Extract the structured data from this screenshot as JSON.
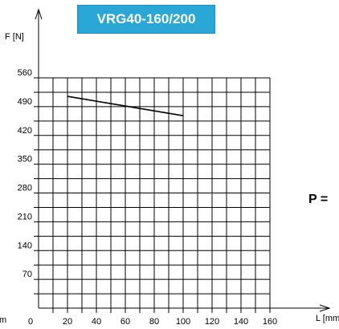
{
  "chart_data": {
    "type": "line",
    "title": "VRG40-160/200",
    "xlabel": "L [mm",
    "ylabel": "F [N]",
    "side_label": "P =",
    "left_unit": "m",
    "x_ticks": [
      "0",
      "20",
      "40",
      "60",
      "80",
      "100",
      "120",
      "140",
      "160"
    ],
    "y_ticks": [
      "70",
      "140",
      "210",
      "280",
      "350",
      "420",
      "490",
      "560"
    ],
    "xlim": [
      0,
      160
    ],
    "ylim": [
      0,
      560
    ],
    "grid": true,
    "series": [
      {
        "x": [
          20,
          100
        ],
        "y": [
          515,
          468
        ]
      }
    ],
    "colors": {
      "title_bg": "#29a7d7",
      "title_text": "#ffffff",
      "line": "#000000",
      "grid": "#000000"
    }
  }
}
